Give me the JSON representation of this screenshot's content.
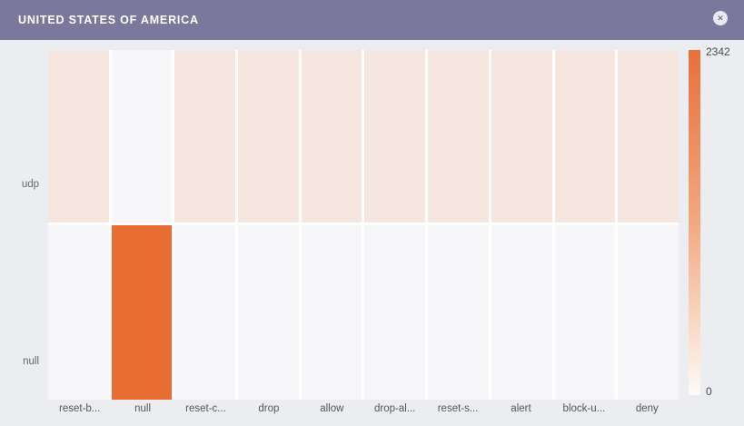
{
  "header": {
    "title": "UNITED STATES OF AMERICA",
    "close_icon": "✕",
    "background_color": "#7b789c"
  },
  "colors": {
    "page_background": "#ebedf1",
    "cell_gap": "#ffffff",
    "max_color": "#e76d32",
    "low_color": "#f5e6e0",
    "empty_color": "#f6f6f8",
    "axis_label": "#666666"
  },
  "chart_data": {
    "type": "heatmap",
    "title": "UNITED STATES OF AMERICA",
    "xlabel": "",
    "ylabel": "",
    "grid": "off",
    "x_categories": [
      "reset-b...",
      "null",
      "reset-c...",
      "drop",
      "allow",
      "drop-al...",
      "reset-s...",
      "alert",
      "block-u...",
      "deny"
    ],
    "y_categories": [
      "udp",
      "null"
    ],
    "series": [
      {
        "name": "udp",
        "values": [
          380,
          0,
          380,
          380,
          380,
          380,
          380,
          380,
          380,
          380
        ]
      },
      {
        "name": "null",
        "values": [
          0,
          2342,
          0,
          0,
          0,
          0,
          0,
          0,
          0,
          0
        ]
      }
    ],
    "cell_colors": [
      [
        "#f5e6e0",
        "#f6f6f8",
        "#f5e6e0",
        "#f5e6e0",
        "#f5e6e0",
        "#f5e6e0",
        "#f5e6e0",
        "#f5e6e0",
        "#f5e6e0",
        "#f5e6e0"
      ],
      [
        "#f6f6f8",
        "#e76d32",
        "#f6f6f8",
        "#f6f6f8",
        "#f6f6f8",
        "#f6f6f8",
        "#f6f6f8",
        "#f6f6f8",
        "#f6f6f8",
        "#f6f6f8"
      ]
    ],
    "colorbar": {
      "position": "right",
      "min": 0,
      "max": 2342,
      "min_label": "0",
      "max_label": "2342",
      "gradient": [
        "#e8703a",
        "#f2a87e",
        "#fdfaf8"
      ]
    }
  }
}
